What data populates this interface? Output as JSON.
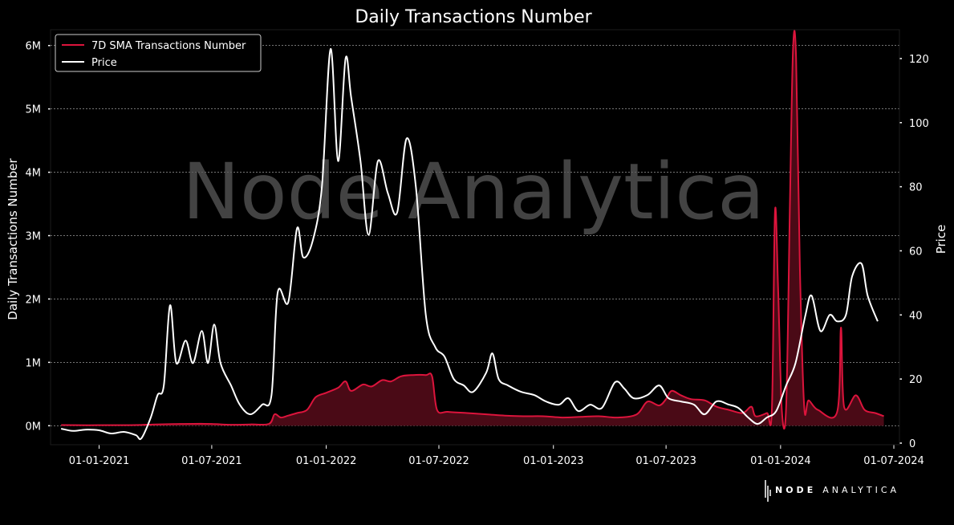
{
  "chart_data": {
    "type": "line",
    "title": "Daily Transactions Number",
    "ylabel": "Daily Transactions Number",
    "y2label": "Price",
    "watermark": "Node Analytica",
    "brand": {
      "bold": "NODE",
      "rest": "ANALYTICA"
    },
    "xlim": [
      "2020-10-15",
      "2024-07-10"
    ],
    "ylim": [
      -300000,
      6250000
    ],
    "y2lim": [
      -0.5,
      129
    ],
    "x_ticks": [
      "2021-01-01",
      "2021-07-01",
      "2022-01-01",
      "2022-07-01",
      "2023-01-01",
      "2023-07-01",
      "2024-01-01",
      "2024-07-01"
    ],
    "x_tick_labels": [
      "01-01-2021",
      "01-07-2021",
      "01-01-2022",
      "01-07-2022",
      "01-01-2023",
      "01-07-2023",
      "01-01-2024",
      "01-07-2024"
    ],
    "y_ticks": [
      0,
      1000000,
      2000000,
      3000000,
      4000000,
      5000000,
      6000000
    ],
    "y_tick_labels": [
      "0M",
      "1M",
      "2M",
      "3M",
      "4M",
      "5M",
      "6M"
    ],
    "y2_ticks": [
      0,
      20,
      40,
      60,
      80,
      100,
      120
    ],
    "y2_tick_labels": [
      "0",
      "20",
      "40",
      "60",
      "80",
      "100",
      "120"
    ],
    "grid": true,
    "legend_position": "top-left",
    "colors": {
      "transactions": "#dc143c",
      "transactions_fill": "#4a0a16",
      "price": "#ffffff"
    },
    "series": [
      {
        "name": "7D SMA Transactions Number",
        "axis": "left",
        "fill": true,
        "points": [
          [
            "2020-11-01",
            10000
          ],
          [
            "2020-12-15",
            8000
          ],
          [
            "2021-01-15",
            9000
          ],
          [
            "2021-03-01",
            10000
          ],
          [
            "2021-04-01",
            20000
          ],
          [
            "2021-05-01",
            25000
          ],
          [
            "2021-06-01",
            30000
          ],
          [
            "2021-07-01",
            28000
          ],
          [
            "2021-08-01",
            15000
          ],
          [
            "2021-09-01",
            20000
          ],
          [
            "2021-10-01",
            30000
          ],
          [
            "2021-10-10",
            180000
          ],
          [
            "2021-10-20",
            130000
          ],
          [
            "2021-11-01",
            160000
          ],
          [
            "2021-11-15",
            200000
          ],
          [
            "2021-12-01",
            250000
          ],
          [
            "2021-12-15",
            450000
          ],
          [
            "2022-01-01",
            520000
          ],
          [
            "2022-01-20",
            600000
          ],
          [
            "2022-02-01",
            700000
          ],
          [
            "2022-02-10",
            550000
          ],
          [
            "2022-03-01",
            650000
          ],
          [
            "2022-03-15",
            620000
          ],
          [
            "2022-04-01",
            720000
          ],
          [
            "2022-04-15",
            700000
          ],
          [
            "2022-05-01",
            780000
          ],
          [
            "2022-05-20",
            800000
          ],
          [
            "2022-06-10",
            800000
          ],
          [
            "2022-06-20",
            780000
          ],
          [
            "2022-06-28",
            250000
          ],
          [
            "2022-07-15",
            220000
          ],
          [
            "2022-08-15",
            200000
          ],
          [
            "2022-09-15",
            180000
          ],
          [
            "2022-10-15",
            160000
          ],
          [
            "2022-11-15",
            150000
          ],
          [
            "2022-12-15",
            150000
          ],
          [
            "2023-01-15",
            130000
          ],
          [
            "2023-02-15",
            140000
          ],
          [
            "2023-03-15",
            150000
          ],
          [
            "2023-04-15",
            130000
          ],
          [
            "2023-05-15",
            180000
          ],
          [
            "2023-06-01",
            380000
          ],
          [
            "2023-06-20",
            320000
          ],
          [
            "2023-07-01",
            420000
          ],
          [
            "2023-07-10",
            550000
          ],
          [
            "2023-07-25",
            480000
          ],
          [
            "2023-08-10",
            420000
          ],
          [
            "2023-09-01",
            400000
          ],
          [
            "2023-09-20",
            300000
          ],
          [
            "2023-10-10",
            250000
          ],
          [
            "2023-11-01",
            200000
          ],
          [
            "2023-11-15",
            300000
          ],
          [
            "2023-11-22",
            150000
          ],
          [
            "2023-12-10",
            200000
          ],
          [
            "2023-12-18",
            250000
          ],
          [
            "2023-12-23",
            3380000
          ],
          [
            "2023-12-28",
            2200000
          ],
          [
            "2024-01-03",
            250000
          ],
          [
            "2024-01-10",
            300000
          ],
          [
            "2024-01-16",
            3500000
          ],
          [
            "2024-01-21",
            5950000
          ],
          [
            "2024-01-26",
            5800000
          ],
          [
            "2024-02-01",
            2500000
          ],
          [
            "2024-02-08",
            300000
          ],
          [
            "2024-02-15",
            400000
          ],
          [
            "2024-03-01",
            250000
          ],
          [
            "2024-04-01",
            220000
          ],
          [
            "2024-04-07",
            1550000
          ],
          [
            "2024-04-12",
            300000
          ],
          [
            "2024-05-01",
            480000
          ],
          [
            "2024-05-15",
            250000
          ],
          [
            "2024-06-01",
            200000
          ],
          [
            "2024-06-15",
            150000
          ]
        ]
      },
      {
        "name": "Price",
        "axis": "right",
        "fill": false,
        "points": [
          [
            "2020-11-01",
            4.5
          ],
          [
            "2020-11-20",
            3.8
          ],
          [
            "2020-12-10",
            4.2
          ],
          [
            "2021-01-01",
            4.0
          ],
          [
            "2021-01-20",
            3.0
          ],
          [
            "2021-02-10",
            3.5
          ],
          [
            "2021-03-01",
            2.5
          ],
          [
            "2021-03-10",
            1.5
          ],
          [
            "2021-03-25",
            8
          ],
          [
            "2021-04-05",
            15
          ],
          [
            "2021-04-15",
            18
          ],
          [
            "2021-04-25",
            43
          ],
          [
            "2021-05-05",
            25
          ],
          [
            "2021-05-20",
            32
          ],
          [
            "2021-06-01",
            25
          ],
          [
            "2021-06-15",
            35
          ],
          [
            "2021-06-25",
            25
          ],
          [
            "2021-07-05",
            37
          ],
          [
            "2021-07-15",
            25
          ],
          [
            "2021-08-01",
            18
          ],
          [
            "2021-08-15",
            12
          ],
          [
            "2021-09-01",
            9
          ],
          [
            "2021-09-20",
            12
          ],
          [
            "2021-10-05",
            15
          ],
          [
            "2021-10-15",
            47
          ],
          [
            "2021-11-01",
            44
          ],
          [
            "2021-11-15",
            67
          ],
          [
            "2021-11-25",
            58
          ],
          [
            "2021-12-10",
            63
          ],
          [
            "2021-12-25",
            80
          ],
          [
            "2022-01-08",
            123
          ],
          [
            "2022-01-20",
            88
          ],
          [
            "2022-02-01",
            120
          ],
          [
            "2022-02-10",
            108
          ],
          [
            "2022-02-25",
            88
          ],
          [
            "2022-03-10",
            65
          ],
          [
            "2022-03-25",
            88
          ],
          [
            "2022-04-10",
            78
          ],
          [
            "2022-04-25",
            72
          ],
          [
            "2022-05-10",
            95
          ],
          [
            "2022-05-25",
            80
          ],
          [
            "2022-06-10",
            40
          ],
          [
            "2022-06-25",
            30
          ],
          [
            "2022-07-10",
            27
          ],
          [
            "2022-07-25",
            20
          ],
          [
            "2022-08-10",
            18
          ],
          [
            "2022-08-25",
            16
          ],
          [
            "2022-09-15",
            22
          ],
          [
            "2022-09-25",
            28
          ],
          [
            "2022-10-05",
            20
          ],
          [
            "2022-10-20",
            18
          ],
          [
            "2022-11-10",
            16
          ],
          [
            "2022-12-01",
            15
          ],
          [
            "2022-12-20",
            13
          ],
          [
            "2023-01-10",
            12
          ],
          [
            "2023-01-25",
            14
          ],
          [
            "2023-02-10",
            10
          ],
          [
            "2023-03-01",
            12
          ],
          [
            "2023-03-20",
            11
          ],
          [
            "2023-04-10",
            19
          ],
          [
            "2023-04-25",
            17
          ],
          [
            "2023-05-10",
            14
          ],
          [
            "2023-06-01",
            15
          ],
          [
            "2023-06-20",
            18
          ],
          [
            "2023-07-05",
            14
          ],
          [
            "2023-07-25",
            13
          ],
          [
            "2023-08-15",
            12
          ],
          [
            "2023-09-01",
            9
          ],
          [
            "2023-09-20",
            13
          ],
          [
            "2023-10-10",
            12
          ],
          [
            "2023-10-25",
            11
          ],
          [
            "2023-11-10",
            8
          ],
          [
            "2023-11-25",
            6
          ],
          [
            "2023-12-10",
            8
          ],
          [
            "2023-12-25",
            10
          ],
          [
            "2024-01-10",
            18
          ],
          [
            "2024-01-25",
            25
          ],
          [
            "2024-02-10",
            40
          ],
          [
            "2024-02-20",
            46
          ],
          [
            "2024-03-05",
            35
          ],
          [
            "2024-03-20",
            40
          ],
          [
            "2024-04-01",
            38
          ],
          [
            "2024-04-15",
            40
          ],
          [
            "2024-04-25",
            52
          ],
          [
            "2024-05-10",
            56
          ],
          [
            "2024-05-20",
            46
          ],
          [
            "2024-06-05",
            38
          ]
        ]
      }
    ]
  }
}
